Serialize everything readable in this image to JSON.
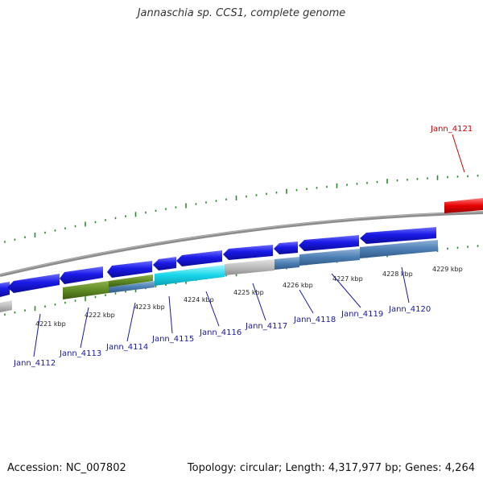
{
  "title": "Jannaschia sp. CCS1, complete genome",
  "footer": {
    "accession": "Accession: NC_007802",
    "stats": "Topology: circular; Length: 4,317,977 bp; Genes: 4,264"
  },
  "colors": {
    "backbone": "#8c8c8c",
    "tick": "#2a8a2a",
    "forward_gene": "#1a1ae6",
    "reverse_gene": "#4d7fb5",
    "highlight": "#e60000",
    "label_link": "#1a1aa0",
    "label_highlight": "#cc0000"
  },
  "scale_labels": [
    {
      "kbp": 4221,
      "text": "4221 kbp"
    },
    {
      "kbp": 4222,
      "text": "4222 kbp"
    },
    {
      "kbp": 4223,
      "text": "4223 kbp"
    },
    {
      "kbp": 4224,
      "text": "4224 kbp"
    },
    {
      "kbp": 4225,
      "text": "4225 kbp"
    },
    {
      "kbp": 4226,
      "text": "4226 kbp"
    },
    {
      "kbp": 4227,
      "text": "4227 kbp"
    },
    {
      "kbp": 4228,
      "text": "4228 kbp"
    },
    {
      "kbp": 4229,
      "text": "4229 kbp"
    }
  ],
  "gene_labels": [
    {
      "name": "Jann_4112",
      "color": "#1a1aa0"
    },
    {
      "name": "Jann_4113",
      "color": "#1a1aa0"
    },
    {
      "name": "Jann_4114",
      "color": "#1a1aa0"
    },
    {
      "name": "Jann_4115",
      "color": "#1a1aa0"
    },
    {
      "name": "Jann_4116",
      "color": "#1a1aa0"
    },
    {
      "name": "Jann_4117",
      "color": "#1a1aa0"
    },
    {
      "name": "Jann_4118",
      "color": "#1a1aa0"
    },
    {
      "name": "Jann_4119",
      "color": "#1a1aa0"
    },
    {
      "name": "Jann_4120",
      "color": "#1a1aa0"
    },
    {
      "name": "Jann_4121",
      "color": "#cc0000"
    }
  ]
}
